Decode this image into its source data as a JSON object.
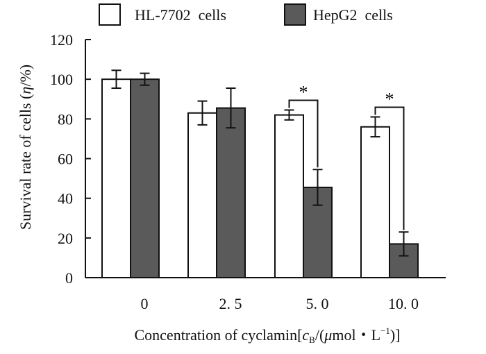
{
  "chart_data": {
    "type": "bar",
    "title": "",
    "xlabel": "Concentration of cyclamin[",
    "xlabel_cb_c": "c",
    "xlabel_cb_b": "B",
    "xlabel_mid": "/(",
    "xlabel_mu": "μ",
    "xlabel_mol": "mol・L",
    "xlabel_exp": "−1",
    "xlabel_end": ")]",
    "ylabel": "Survival rate of cells (",
    "ylabel_eta": "η",
    "ylabel_end": "/%)",
    "ylim": [
      0,
      120
    ],
    "yticks": [
      "0",
      "20",
      "40",
      "60",
      "80",
      "100",
      "120"
    ],
    "categories": [
      "0",
      "2.5",
      "5.0",
      "10.0"
    ],
    "category_labels": [
      "0",
      "2. 5",
      "5. 0",
      "10. 0"
    ],
    "series": [
      {
        "name": "HL-7702  cells",
        "values": [
          100,
          83,
          82,
          76
        ],
        "errors": [
          4.5,
          6,
          2.5,
          5
        ],
        "color": "#ffffff"
      },
      {
        "name": "HepG2  cells",
        "values": [
          100,
          85.5,
          45.5,
          17
        ],
        "errors": [
          3,
          10,
          9,
          6
        ],
        "color": "#5a5a5a"
      }
    ],
    "annotations": [
      {
        "text": "*",
        "category": "5.0"
      },
      {
        "text": "*",
        "category": "10.0"
      }
    ],
    "legend_position": "top"
  }
}
